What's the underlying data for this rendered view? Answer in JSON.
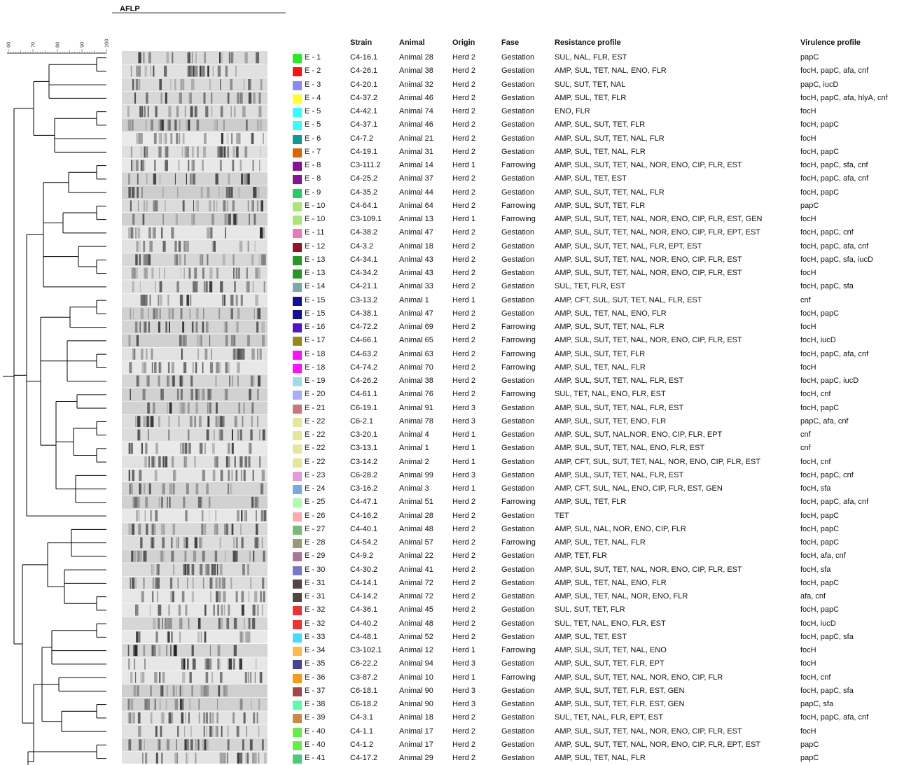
{
  "aflp_title": "AFLP",
  "scale_ticks": [
    "60",
    "70",
    "80",
    "90",
    "100"
  ],
  "headers": {
    "strain": "Strain",
    "animal": "Animal",
    "origin": "Origin",
    "fase": "Fase",
    "resistance": "Resistance profile",
    "virulence": "Virulence profile"
  },
  "rows": [
    {
      "cluster": "E - 1",
      "color": "#22ee22",
      "strain": "C4-16.1",
      "animal": "Animal 28",
      "origin": "Herd 2",
      "fase": "Gestation",
      "resistance": "SUL, NAL, FLR, EST",
      "virulence": "papC"
    },
    {
      "cluster": "E - 2",
      "color": "#ff1111",
      "strain": "C4-26.1",
      "animal": "Animal 38",
      "origin": "Herd 2",
      "fase": "Gestation",
      "resistance": "AMP, SUL, TET, NAL, ENO, FLR",
      "virulence": "focH, papC, afa, cnf"
    },
    {
      "cluster": "E - 3",
      "color": "#8888ff",
      "strain": "C4-20.1",
      "animal": "Animal 32",
      "origin": "Herd 2",
      "fase": "Gestation",
      "resistance": "SUL, SUT, TET, NAL",
      "virulence": "papC, iucD"
    },
    {
      "cluster": "E - 4",
      "color": "#ffff22",
      "strain": "C4-37.2",
      "animal": "Animal 46",
      "origin": "Herd 2",
      "fase": "Gestation",
      "resistance": "AMP, SUL, TET, FLR",
      "virulence": "focH, papC, afa, hlyA, cnf"
    },
    {
      "cluster": "E - 5",
      "color": "#33ffff",
      "strain": "C4-42.1",
      "animal": "Animal 74",
      "origin": "Herd 2",
      "fase": "Gestation",
      "resistance": "ENO, FLR",
      "virulence": "focH"
    },
    {
      "cluster": "E - 5",
      "color": "#33ffff",
      "strain": "C4-37.1",
      "animal": "Animal 46",
      "origin": "Herd 2",
      "fase": "Gestation",
      "resistance": "AMP, SUL, SUT, TET, FLR",
      "virulence": "focH, papC"
    },
    {
      "cluster": "E - 6",
      "color": "#119999",
      "strain": "C4-7.2",
      "animal": "Animal 21",
      "origin": "Herd 2",
      "fase": "Gestation",
      "resistance": "AMP, SUL, SUT, TET, NAL, FLR",
      "virulence": "focH"
    },
    {
      "cluster": "E - 7",
      "color": "#dd6600",
      "strain": "C4-19.1",
      "animal": "Animal 31",
      "origin": "Herd 2",
      "fase": "Gestation",
      "resistance": "AMP, SUL, TET, NAL, FLR",
      "virulence": "focH, papC"
    },
    {
      "cluster": "E - 8",
      "color": "#881199",
      "strain": "C3-111.2",
      "animal": "Animal 14",
      "origin": "Herd 1",
      "fase": "Farrowing",
      "resistance": "AMP, SUL, SUT, TET, NAL, NOR, ENO, CIP, FLR, EST",
      "virulence": "focH, papC, sfa, cnf"
    },
    {
      "cluster": "E - 8",
      "color": "#881199",
      "strain": "C4-25.2",
      "animal": "Animal 37",
      "origin": "Herd 2",
      "fase": "Gestation",
      "resistance": "AMP, SUL, TET, EST",
      "virulence": "focH, papC, afa, cnf"
    },
    {
      "cluster": "E - 9",
      "color": "#22cc66",
      "strain": "C4-35.2",
      "animal": "Animal 44",
      "origin": "Herd 2",
      "fase": "Gestation",
      "resistance": "AMP, SUL, SUT, TET, NAL, FLR",
      "virulence": "focH, papC"
    },
    {
      "cluster": "E - 10",
      "color": "#aae677",
      "strain": "C4-64.1",
      "animal": "Animal 64",
      "origin": "Herd 2",
      "fase": "Farrowing",
      "resistance": "AMP, SUL, SUT, TET, FLR",
      "virulence": "papC"
    },
    {
      "cluster": "E - 10",
      "color": "#aae677",
      "strain": "C3-109.1",
      "animal": "Animal 13",
      "origin": "Herd 1",
      "fase": "Farrowing",
      "resistance": "AMP, SUL, SUT, TET, NAL, NOR, ENO, CIP, FLR, EST, GEN",
      "virulence": "focH"
    },
    {
      "cluster": "E - 11",
      "color": "#ee77bb",
      "strain": "C4-38.2",
      "animal": "Animal 47",
      "origin": "Herd 2",
      "fase": "Gestation",
      "resistance": "AMP, SUL, SUT, TET, NAL, NOR, ENO, CIP, FLR, EPT, EST",
      "virulence": "focH, papC, cnf"
    },
    {
      "cluster": "E - 12",
      "color": "#991122",
      "strain": "C4-3.2",
      "animal": "Animal 18",
      "origin": "Herd 2",
      "fase": "Gestation",
      "resistance": "AMP, SUL, SUT, TET, NAL, FLR, EPT, EST",
      "virulence": "focH, papC, afa, cnf"
    },
    {
      "cluster": "E - 13",
      "color": "#229922",
      "strain": "C4-34.1",
      "animal": "Animal 43",
      "origin": "Herd 2",
      "fase": "Gestation",
      "resistance": "AMP, SUL, SUT, TET, NAL, NOR, ENO, CIP, FLR, EST",
      "virulence": "focH, papC, sfa, iucD"
    },
    {
      "cluster": "E - 13",
      "color": "#229922",
      "strain": "C4-34.2",
      "animal": "Animal 43",
      "origin": "Herd 2",
      "fase": "Gestation",
      "resistance": "AMP, SUL, SUT, TET, NAL, NOR, ENO, CIP, FLR, EST",
      "virulence": "focH"
    },
    {
      "cluster": "E - 14",
      "color": "#77aaaa",
      "strain": "C4-21.1",
      "animal": "Animal 33",
      "origin": "Herd 2",
      "fase": "Gestation",
      "resistance": "SUL, TET, FLR, EST",
      "virulence": "focH, papC, sfa"
    },
    {
      "cluster": "E - 15",
      "color": "#111199",
      "strain": "C3-13.2",
      "animal": "Animal 1",
      "origin": "Herd 1",
      "fase": "Gestation",
      "resistance": "AMP, CFT, SUL, SUT, TET, NAL, FLR, EST",
      "virulence": "cnf"
    },
    {
      "cluster": "E - 15",
      "color": "#111199",
      "strain": "C4-38.1",
      "animal": "Animal 47",
      "origin": "Herd 2",
      "fase": "Gestation",
      "resistance": "AMP, SUL, TET, NAL, ENO, FLR",
      "virulence": "focH, papC"
    },
    {
      "cluster": "E - 16",
      "color": "#5511cc",
      "strain": "C4-72.2",
      "animal": "Animal 69",
      "origin": "Herd 2",
      "fase": "Farrowing",
      "resistance": "AMP, SUL, SUT, TET, NAL, FLR",
      "virulence": "focH"
    },
    {
      "cluster": "E - 17",
      "color": "#998811",
      "strain": "C4-66.1",
      "animal": "Animal 65",
      "origin": "Herd 2",
      "fase": "Farrowing",
      "resistance": "AMP, SUL, SUT, TET, NAL, NOR, ENO, CIP, FLR, EST",
      "virulence": "focH, iucD"
    },
    {
      "cluster": "E - 18",
      "color": "#ff11ff",
      "strain": "C4-63.2",
      "animal": "Animal 63",
      "origin": "Herd 2",
      "fase": "Farrowing",
      "resistance": "AMP, SUL, SUT, TET, FLR",
      "virulence": "focH, papC, afa, cnf"
    },
    {
      "cluster": "E - 18",
      "color": "#ff11ff",
      "strain": "C4-74.2",
      "animal": "Animal 70",
      "origin": "Herd 2",
      "fase": "Farrowing",
      "resistance": "AMP, SUL, TET, NAL, FLR",
      "virulence": "focH"
    },
    {
      "cluster": "E - 19",
      "color": "#99ddee",
      "strain": "C4-26.2",
      "animal": "Animal 38",
      "origin": "Herd 2",
      "fase": "Gestation",
      "resistance": "AMP, SUL, SUT, TET, NAL, FLR, EST",
      "virulence": "focH, papC, iucD"
    },
    {
      "cluster": "E - 20",
      "color": "#aaaaff",
      "strain": "C4-61.1",
      "animal": "Animal 76",
      "origin": "Herd 2",
      "fase": "Farrowing",
      "resistance": "SUL, TET, NAL, ENO, FLR, EST",
      "virulence": "focH, cnf"
    },
    {
      "cluster": "E - 21",
      "color": "#cc7777",
      "strain": "C6-19.1",
      "animal": "Animal 91",
      "origin": "Herd 3",
      "fase": "Gestation",
      "resistance": "AMP, SUL, SUT, TET, NAL, FLR, EST",
      "virulence": "focH, papC"
    },
    {
      "cluster": "E - 22",
      "color": "#e6e699",
      "strain": "C6-2.1",
      "animal": "Animal 78",
      "origin": "Herd 3",
      "fase": "Gestation",
      "resistance": "AMP, SUL, SUT, TET, ENO, FLR",
      "virulence": "papC, afa, cnf"
    },
    {
      "cluster": "E - 22",
      "color": "#e6e699",
      "strain": "C3-20.1",
      "animal": "Animal 4",
      "origin": "Herd 1",
      "fase": "Gestation",
      "resistance": "AMP, SUL, SUT, NAL,NOR, ENO, CIP, FLR, EPT",
      "virulence": "cnf"
    },
    {
      "cluster": "E - 22",
      "color": "#e6e699",
      "strain": "C3-13.1",
      "animal": "Animal 1",
      "origin": "Herd 1",
      "fase": "Gestation",
      "resistance": "AMP, SUL, SUT, TET, NAL, ENO, FLR, EST",
      "virulence": "cnf"
    },
    {
      "cluster": "E - 22",
      "color": "#e6e699",
      "strain": "C3-14.2",
      "animal": "Animal 2",
      "origin": "Herd 1",
      "fase": "Gestation",
      "resistance": "AMP, CFT, SUL, SUT, TET, NAL, NOR, ENO, CIP, FLR, EST",
      "virulence": "focH, cnf"
    },
    {
      "cluster": "E - 23",
      "color": "#e699dd",
      "strain": "C6-28.2",
      "animal": "Animal 99",
      "origin": "Herd 3",
      "fase": "Gestation",
      "resistance": "AMP, SUL, SUT, TET, NAL, FLR, EST",
      "virulence": "focH, papC, cnf"
    },
    {
      "cluster": "E - 24",
      "color": "#77aadd",
      "strain": "C3-16.2",
      "animal": "Animal 3",
      "origin": "Herd 1",
      "fase": "Gestation",
      "resistance": "AMP, CFT, SUL, NAL, ENO, CIP, FLR, EST, GEN",
      "virulence": "focH, sfa"
    },
    {
      "cluster": "E - 25",
      "color": "#aaffaa",
      "strain": "C4-47.1",
      "animal": "Animal 51",
      "origin": "Herd 2",
      "fase": "Farrowing",
      "resistance": "AMP, SUL, TET, FLR",
      "virulence": "focH, papC, afa, cnf"
    },
    {
      "cluster": "E - 26",
      "color": "#ffaaaa",
      "strain": "C4-16.2",
      "animal": "Animal 28",
      "origin": "Herd 2",
      "fase": "Gestation",
      "resistance": "TET",
      "virulence": "focH, papC"
    },
    {
      "cluster": "E - 27",
      "color": "#77bb77",
      "strain": "C4-40.1",
      "animal": "Animal 48",
      "origin": "Herd 2",
      "fase": "Gestation",
      "resistance": "AMP, SUL, NAL, NOR, ENO, CIP, FLR",
      "virulence": "focH, papC"
    },
    {
      "cluster": "E - 28",
      "color": "#999977",
      "strain": "C4-54.2",
      "animal": "Animal 57",
      "origin": "Herd 2",
      "fase": "Farrowing",
      "resistance": "AMP, SUL, TET, NAL, FLR",
      "virulence": "focH, papC"
    },
    {
      "cluster": "E - 29",
      "color": "#aa7799",
      "strain": "C4-9.2",
      "animal": "Animal 22",
      "origin": "Herd 2",
      "fase": "Gestation",
      "resistance": "AMP, TET, FLR",
      "virulence": "focH, afa, cnf"
    },
    {
      "cluster": "E - 30",
      "color": "#7777cc",
      "strain": "C4-30.2",
      "animal": "Animal 41",
      "origin": "Herd 2",
      "fase": "Gestation",
      "resistance": "AMP, SUL, SUT, TET, NAL, NOR, ENO, CIP, FLR, EST",
      "virulence": "focH, sfa"
    },
    {
      "cluster": "E - 31",
      "color": "#554444",
      "strain": "C4-14.1",
      "animal": "Animal 72",
      "origin": "Herd 2",
      "fase": "Gestation",
      "resistance": "AMP, SUL, TET, NAL, ENO, FLR",
      "virulence": "focH, papC"
    },
    {
      "cluster": "E - 31",
      "color": "#554444",
      "strain": "C4-14.2",
      "animal": "Animal 72",
      "origin": "Herd 2",
      "fase": "Gestation",
      "resistance": "AMP, SUL, TET, NAL, NOR, ENO, FLR",
      "virulence": "afa, cnf"
    },
    {
      "cluster": "E - 32",
      "color": "#ee3333",
      "strain": "C4-36.1",
      "animal": "Animal 45",
      "origin": "Herd 2",
      "fase": "Gestation",
      "resistance": "SUL, SUT, TET, FLR",
      "virulence": "focH, papC"
    },
    {
      "cluster": "E - 32",
      "color": "#ee3333",
      "strain": "C4-40.2",
      "animal": "Animal 48",
      "origin": "Herd 2",
      "fase": "Gestation",
      "resistance": "SUL, TET, NAL, ENO, FLR, EST",
      "virulence": "focH, iucD"
    },
    {
      "cluster": "E - 33",
      "color": "#44ddff",
      "strain": "C4-48.1",
      "animal": "Animal 52",
      "origin": "Herd 2",
      "fase": "Gestation",
      "resistance": "AMP, SUL, TET, EST",
      "virulence": "focH, papC, sfa"
    },
    {
      "cluster": "E - 34",
      "color": "#ffbb44",
      "strain": "C3-102.1",
      "animal": "Animal 12",
      "origin": "Herd 1",
      "fase": "Farrowing",
      "resistance": "AMP, SUL, SUT, TET, NAL, ENO",
      "virulence": "focH"
    },
    {
      "cluster": "E - 35",
      "color": "#444499",
      "strain": "C6-22.2",
      "animal": "Animal 94",
      "origin": "Herd 3",
      "fase": "Gestation",
      "resistance": "AMP, SUL, SUT, TET, FLR, EPT",
      "virulence": "focH"
    },
    {
      "cluster": "E - 36",
      "color": "#ff9911",
      "strain": "C3-87.2",
      "animal": "Animal 10",
      "origin": "Herd 1",
      "fase": "Farrowing",
      "resistance": "AMP, SUL, SUT, TET, NAL, NOR, ENO, CIP, FLR",
      "virulence": "focH, cnf"
    },
    {
      "cluster": "E - 37",
      "color": "#aa4444",
      "strain": "C6-18.1",
      "animal": "Animal 90",
      "origin": "Herd 3",
      "fase": "Gestation",
      "resistance": "AMP, SUL, SUT, TET, FLR, EST, GEN",
      "virulence": "focH, papC, sfa"
    },
    {
      "cluster": "E - 38",
      "color": "#55ffaa",
      "strain": "C6-18.2",
      "animal": "Animal 90",
      "origin": "Herd 3",
      "fase": "Gestation",
      "resistance": "AMP, SUL, SUT, TET, FLR, EST, GEN",
      "virulence": "papC, sfa"
    },
    {
      "cluster": "E - 39",
      "color": "#cc8844",
      "strain": "C4-3.1",
      "animal": "Animal 18",
      "origin": "Herd 2",
      "fase": "Gestation",
      "resistance": "SUL, TET, NAL, FLR, EPT, EST",
      "virulence": "focH, papC, afa, cnf"
    },
    {
      "cluster": "E - 40",
      "color": "#66ee44",
      "strain": "C4-1.1",
      "animal": "Animal 17",
      "origin": "Herd 2",
      "fase": "Gestation",
      "resistance": "AMP, SUL, SUT, TET, NAL, NOR, ENO, CIP, FLR, EST",
      "virulence": "focH"
    },
    {
      "cluster": "E - 40",
      "color": "#66ee44",
      "strain": "C4-1.2",
      "animal": "Animal 17",
      "origin": "Herd 2",
      "fase": "Gestation",
      "resistance": "AMP, SUL, SUT, TET, NAL, NOR, ENO, CIP, FLR, EPT, EST",
      "virulence": "papC"
    },
    {
      "cluster": "E - 41",
      "color": "#44cc77",
      "strain": "C4-17.2",
      "animal": "Animal 29",
      "origin": "Herd 2",
      "fase": "Gestation",
      "resistance": "AMP, SUL, TET, NAL, FLR",
      "virulence": "papC"
    }
  ]
}
